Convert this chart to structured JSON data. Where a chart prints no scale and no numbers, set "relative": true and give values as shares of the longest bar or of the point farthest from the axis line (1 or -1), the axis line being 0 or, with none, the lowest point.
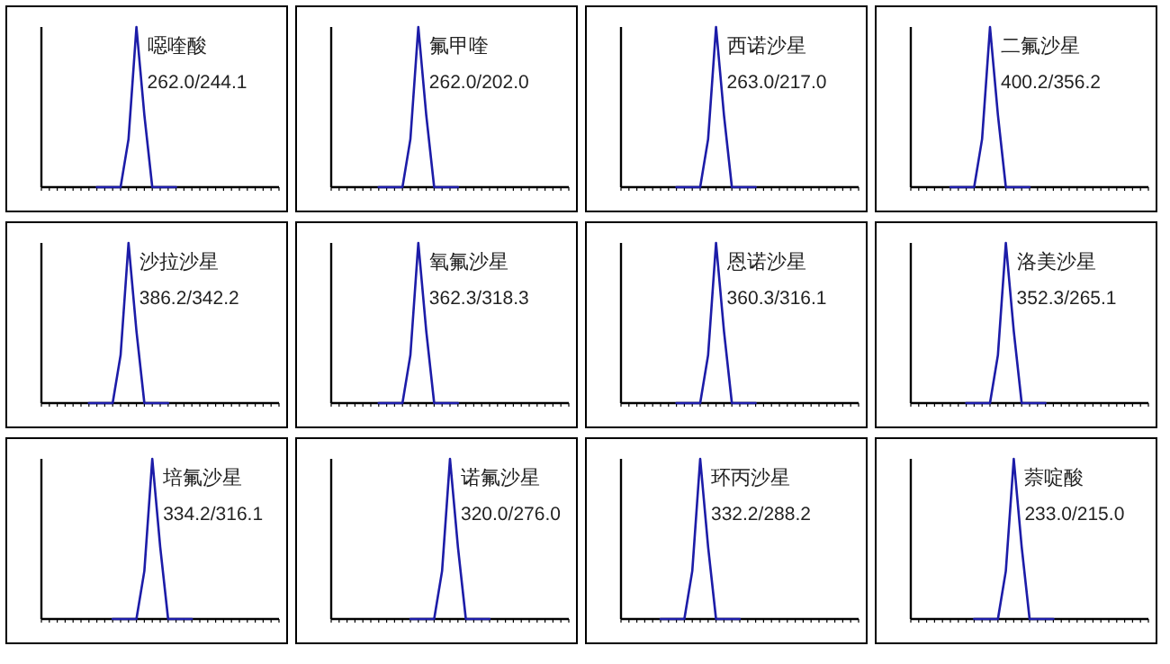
{
  "chart_data": [
    {
      "type": "line",
      "relative": true,
      "categories": [
        null,
        null,
        null,
        null,
        null,
        null,
        null,
        null,
        null,
        null,
        null,
        null,
        null,
        null,
        null,
        null,
        null,
        null,
        null,
        null,
        null,
        null,
        null,
        null,
        null,
        null,
        null,
        null,
        null,
        null,
        null
      ],
      "series": [
        {
          "color": "#1c1ca8",
          "values": [
            null,
            null,
            null,
            null,
            null,
            null,
            null,
            0,
            0,
            0,
            0,
            0.3,
            1,
            0.45,
            0,
            0,
            0,
            0,
            null,
            null,
            null,
            null,
            null,
            null,
            null,
            null,
            null,
            null,
            null,
            null,
            null
          ]
        }
      ],
      "annotations": [
        "噁喹酸",
        "262.0/244.1"
      ]
    },
    {
      "type": "line",
      "relative": true,
      "categories": [
        null,
        null,
        null,
        null,
        null,
        null,
        null,
        null,
        null,
        null,
        null,
        null,
        null,
        null,
        null,
        null,
        null,
        null,
        null,
        null,
        null,
        null,
        null,
        null,
        null,
        null,
        null,
        null,
        null,
        null,
        null
      ],
      "series": [
        {
          "color": "#1c1ca8",
          "values": [
            null,
            null,
            null,
            null,
            null,
            null,
            0,
            0,
            0,
            0,
            0.3,
            1,
            0.45,
            0,
            0,
            0,
            0,
            null,
            null,
            null,
            null,
            null,
            null,
            null,
            null,
            null,
            null,
            null,
            null,
            null,
            null
          ]
        }
      ],
      "annotations": [
        "氟甲喹",
        "262.0/202.0"
      ]
    },
    {
      "type": "line",
      "relative": true,
      "categories": [
        null,
        null,
        null,
        null,
        null,
        null,
        null,
        null,
        null,
        null,
        null,
        null,
        null,
        null,
        null,
        null,
        null,
        null,
        null,
        null,
        null,
        null,
        null,
        null,
        null,
        null,
        null,
        null,
        null,
        null,
        null
      ],
      "series": [
        {
          "color": "#1c1ca8",
          "values": [
            null,
            null,
            null,
            null,
            null,
            null,
            null,
            0,
            0,
            0,
            0,
            0.3,
            1,
            0.45,
            0,
            0,
            0,
            0,
            null,
            null,
            null,
            null,
            null,
            null,
            null,
            null,
            null,
            null,
            null,
            null,
            null
          ]
        }
      ],
      "annotations": [
        "西诺沙星",
        "263.0/217.0"
      ]
    },
    {
      "type": "line",
      "relative": true,
      "categories": [
        null,
        null,
        null,
        null,
        null,
        null,
        null,
        null,
        null,
        null,
        null,
        null,
        null,
        null,
        null,
        null,
        null,
        null,
        null,
        null,
        null,
        null,
        null,
        null,
        null,
        null,
        null,
        null,
        null,
        null,
        null
      ],
      "series": [
        {
          "color": "#1c1ca8",
          "values": [
            null,
            null,
            null,
            null,
            null,
            0,
            0,
            0,
            0,
            0.3,
            1,
            0.45,
            0,
            0,
            0,
            0,
            null,
            null,
            null,
            null,
            null,
            null,
            null,
            null,
            null,
            null,
            null,
            null,
            null,
            null,
            null
          ]
        }
      ],
      "annotations": [
        "二氟沙星",
        "400.2/356.2"
      ]
    },
    {
      "type": "line",
      "relative": true,
      "categories": [
        null,
        null,
        null,
        null,
        null,
        null,
        null,
        null,
        null,
        null,
        null,
        null,
        null,
        null,
        null,
        null,
        null,
        null,
        null,
        null,
        null,
        null,
        null,
        null,
        null,
        null,
        null,
        null,
        null,
        null,
        null
      ],
      "series": [
        {
          "color": "#1c1ca8",
          "values": [
            null,
            null,
            null,
            null,
            null,
            null,
            0,
            0,
            0,
            0,
            0.3,
            1,
            0.45,
            0,
            0,
            0,
            0,
            null,
            null,
            null,
            null,
            null,
            null,
            null,
            null,
            null,
            null,
            null,
            null,
            null,
            null
          ]
        }
      ],
      "annotations": [
        "沙拉沙星",
        "386.2/342.2"
      ]
    },
    {
      "type": "line",
      "relative": true,
      "categories": [
        null,
        null,
        null,
        null,
        null,
        null,
        null,
        null,
        null,
        null,
        null,
        null,
        null,
        null,
        null,
        null,
        null,
        null,
        null,
        null,
        null,
        null,
        null,
        null,
        null,
        null,
        null,
        null,
        null,
        null,
        null
      ],
      "series": [
        {
          "color": "#1c1ca8",
          "values": [
            null,
            null,
            null,
            null,
            null,
            null,
            0,
            0,
            0,
            0,
            0.3,
            1,
            0.45,
            0,
            0,
            0,
            0,
            null,
            null,
            null,
            null,
            null,
            null,
            null,
            null,
            null,
            null,
            null,
            null,
            null,
            null
          ]
        }
      ],
      "annotations": [
        "氧氟沙星",
        "362.3/318.3"
      ]
    },
    {
      "type": "line",
      "relative": true,
      "categories": [
        null,
        null,
        null,
        null,
        null,
        null,
        null,
        null,
        null,
        null,
        null,
        null,
        null,
        null,
        null,
        null,
        null,
        null,
        null,
        null,
        null,
        null,
        null,
        null,
        null,
        null,
        null,
        null,
        null,
        null,
        null
      ],
      "series": [
        {
          "color": "#1c1ca8",
          "values": [
            null,
            null,
            null,
            null,
            null,
            null,
            null,
            0,
            0,
            0,
            0,
            0.3,
            1,
            0.45,
            0,
            0,
            0,
            0,
            null,
            null,
            null,
            null,
            null,
            null,
            null,
            null,
            null,
            null,
            null,
            null,
            null
          ]
        }
      ],
      "annotations": [
        "恩诺沙星",
        "360.3/316.1"
      ]
    },
    {
      "type": "line",
      "relative": true,
      "categories": [
        null,
        null,
        null,
        null,
        null,
        null,
        null,
        null,
        null,
        null,
        null,
        null,
        null,
        null,
        null,
        null,
        null,
        null,
        null,
        null,
        null,
        null,
        null,
        null,
        null,
        null,
        null,
        null,
        null,
        null,
        null
      ],
      "series": [
        {
          "color": "#1c1ca8",
          "values": [
            null,
            null,
            null,
            null,
            null,
            null,
            null,
            0,
            0,
            0,
            0,
            0.3,
            1,
            0.45,
            0,
            0,
            0,
            0,
            null,
            null,
            null,
            null,
            null,
            null,
            null,
            null,
            null,
            null,
            null,
            null,
            null
          ]
        }
      ],
      "annotations": [
        "洛美沙星",
        "352.3/265.1"
      ]
    },
    {
      "type": "line",
      "relative": true,
      "categories": [
        null,
        null,
        null,
        null,
        null,
        null,
        null,
        null,
        null,
        null,
        null,
        null,
        null,
        null,
        null,
        null,
        null,
        null,
        null,
        null,
        null,
        null,
        null,
        null,
        null,
        null,
        null,
        null,
        null,
        null,
        null
      ],
      "series": [
        {
          "color": "#1c1ca8",
          "values": [
            null,
            null,
            null,
            null,
            null,
            null,
            null,
            null,
            null,
            0,
            0,
            0,
            0,
            0.3,
            1,
            0.45,
            0,
            0,
            0,
            0,
            null,
            null,
            null,
            null,
            null,
            null,
            null,
            null,
            null,
            null,
            null
          ]
        }
      ],
      "annotations": [
        "培氟沙星",
        "334.2/316.1"
      ]
    },
    {
      "type": "line",
      "relative": true,
      "categories": [
        null,
        null,
        null,
        null,
        null,
        null,
        null,
        null,
        null,
        null,
        null,
        null,
        null,
        null,
        null,
        null,
        null,
        null,
        null,
        null,
        null,
        null,
        null,
        null,
        null,
        null,
        null,
        null,
        null,
        null,
        null
      ],
      "series": [
        {
          "color": "#1c1ca8",
          "values": [
            null,
            null,
            null,
            null,
            null,
            null,
            null,
            null,
            null,
            null,
            0,
            0,
            0,
            0,
            0.3,
            1,
            0.45,
            0,
            0,
            0,
            0,
            null,
            null,
            null,
            null,
            null,
            null,
            null,
            null,
            null,
            null
          ]
        }
      ],
      "annotations": [
        "诺氟沙星",
        "320.0/276.0"
      ]
    },
    {
      "type": "line",
      "relative": true,
      "categories": [
        null,
        null,
        null,
        null,
        null,
        null,
        null,
        null,
        null,
        null,
        null,
        null,
        null,
        null,
        null,
        null,
        null,
        null,
        null,
        null,
        null,
        null,
        null,
        null,
        null,
        null,
        null,
        null,
        null,
        null,
        null
      ],
      "series": [
        {
          "color": "#1c1ca8",
          "values": [
            null,
            null,
            null,
            null,
            null,
            0,
            0,
            0,
            0,
            0.3,
            1,
            0.45,
            0,
            0,
            0,
            0,
            null,
            null,
            null,
            null,
            null,
            null,
            null,
            null,
            null,
            null,
            null,
            null,
            null,
            null,
            null
          ]
        }
      ],
      "annotations": [
        "环丙沙星",
        "332.2/288.2"
      ]
    },
    {
      "type": "line",
      "relative": true,
      "categories": [
        null,
        null,
        null,
        null,
        null,
        null,
        null,
        null,
        null,
        null,
        null,
        null,
        null,
        null,
        null,
        null,
        null,
        null,
        null,
        null,
        null,
        null,
        null,
        null,
        null,
        null,
        null,
        null,
        null,
        null,
        null
      ],
      "series": [
        {
          "color": "#1c1ca8",
          "values": [
            null,
            null,
            null,
            null,
            null,
            null,
            null,
            null,
            0,
            0,
            0,
            0,
            0.3,
            1,
            0.45,
            0,
            0,
            0,
            0,
            null,
            null,
            null,
            null,
            null,
            null,
            null,
            null,
            null,
            null,
            null,
            null
          ]
        }
      ],
      "annotations": [
        "萘啶酸",
        "233.0/215.0"
      ]
    }
  ]
}
